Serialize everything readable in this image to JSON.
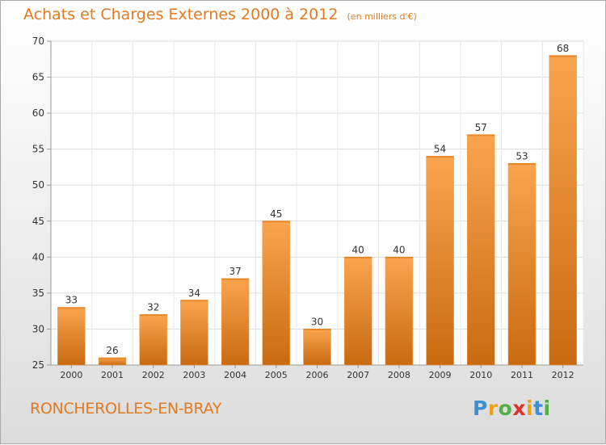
{
  "chart_data": {
    "type": "bar",
    "title": "Achats et Charges Externes 2000 à 2012",
    "subtitle": "(en milliers d'€)",
    "categories": [
      "2000",
      "2001",
      "2002",
      "2003",
      "2004",
      "2005",
      "2006",
      "2007",
      "2008",
      "2009",
      "2010",
      "2011",
      "2012"
    ],
    "values": [
      33,
      26,
      32,
      34,
      37,
      45,
      30,
      40,
      40,
      54,
      57,
      53,
      68
    ],
    "ylim": [
      25,
      70
    ],
    "yticks": [
      25,
      30,
      35,
      40,
      45,
      50,
      55,
      60,
      65,
      70
    ],
    "grid": true,
    "bar_color_top": "#f9a54e",
    "bar_color_bottom": "#c96a10",
    "accent_color": "#e07b22"
  },
  "location": "RONCHEROLLES-EN-BRAY",
  "brand": {
    "letters": [
      "P",
      "r",
      "o",
      "x",
      "i",
      "t",
      "i"
    ],
    "colors": [
      "#3a8fd6",
      "#f0a21a",
      "#52b044",
      "#e0312b",
      "#f0a21a",
      "#3a8fd6",
      "#52b044"
    ]
  }
}
